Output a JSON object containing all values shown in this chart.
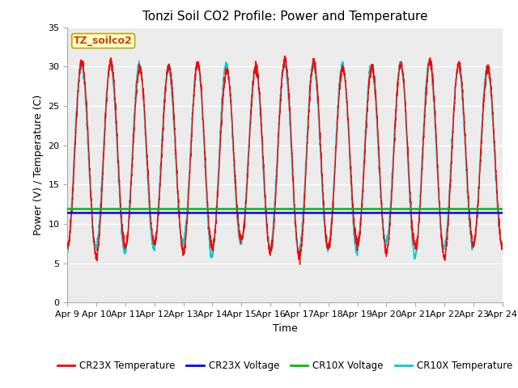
{
  "title": "Tonzi Soil CO2 Profile: Power and Temperature",
  "xlabel": "Time",
  "ylabel": "Power (V) / Temperature (C)",
  "ylim": [
    0,
    35
  ],
  "yticks": [
    0,
    5,
    10,
    15,
    20,
    25,
    30,
    35
  ],
  "x_tick_labels": [
    "Apr 9",
    "Apr 10",
    "Apr 11",
    "Apr 12",
    "Apr 13",
    "Apr 14",
    "Apr 15",
    "Apr 16",
    "Apr 17",
    "Apr 18",
    "Apr 19",
    "Apr 20",
    "Apr 21",
    "Apr 22",
    "Apr 23",
    "Apr 24"
  ],
  "cr23x_voltage": 11.4,
  "cr10x_voltage": 11.9,
  "annotation_text": "TZ_soilco2",
  "annotation_bg": "#FFFFCC",
  "annotation_border": "#BBAA00",
  "cr23x_temp_color": "#FF0000",
  "cr23x_volt_color": "#0000FF",
  "cr10x_volt_color": "#00BB00",
  "cr10x_temp_color": "#00CCCC",
  "plot_bg_color": "#EBEBEB",
  "grid_color": "#FFFFFF",
  "title_fontsize": 11,
  "axis_fontsize": 9,
  "tick_fontsize": 8,
  "legend_entries": [
    "CR23X Temperature",
    "CR23X Voltage",
    "CR10X Voltage",
    "CR10X Temperature"
  ],
  "legend_colors": [
    "#FF0000",
    "#0000FF",
    "#00BB00",
    "#00CCCC"
  ]
}
